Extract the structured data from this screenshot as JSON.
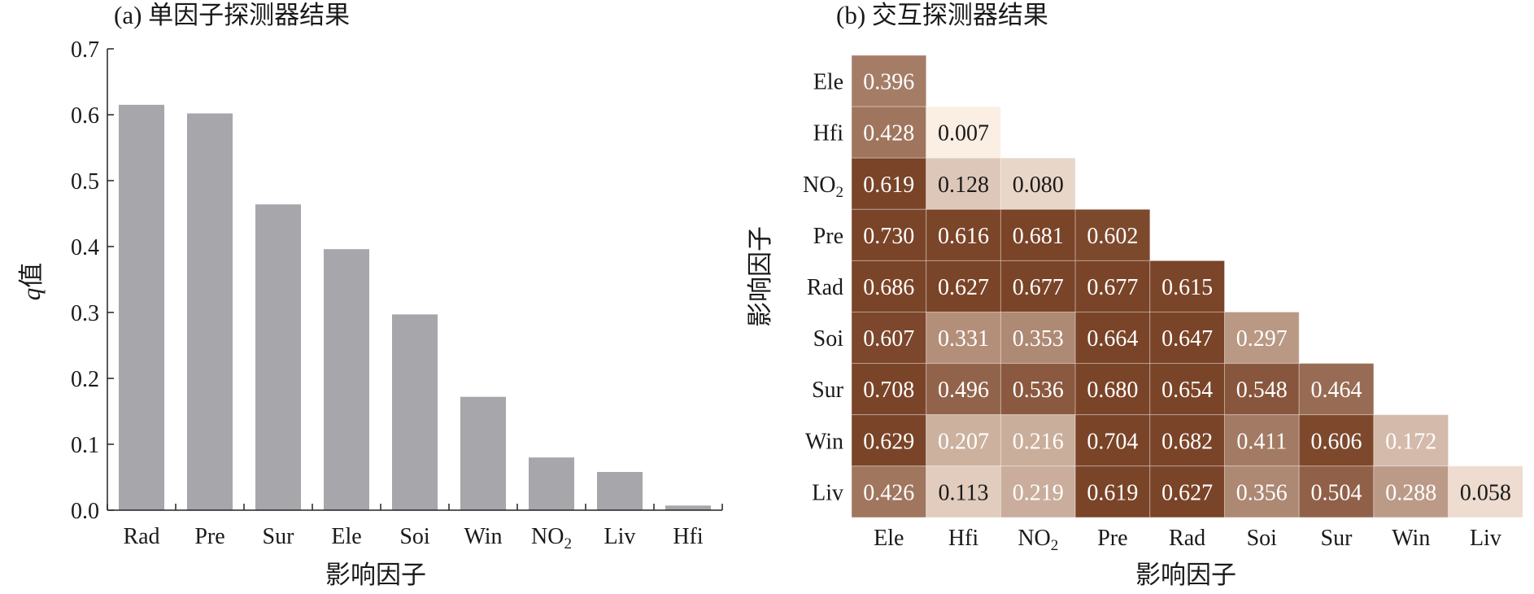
{
  "chart_data": [
    {
      "type": "bar",
      "title": "(a) 单因子探测器结果",
      "xlabel": "影响因子",
      "ylabel_italic": "q",
      "ylabel_rest": "值",
      "categories": [
        "Rad",
        "Pre",
        "Sur",
        "Ele",
        "Soi",
        "Win",
        "NO2",
        "Liv",
        "Hfi"
      ],
      "values": [
        0.615,
        0.602,
        0.464,
        0.396,
        0.297,
        0.172,
        0.08,
        0.058,
        0.007
      ],
      "ylim": [
        0,
        0.7
      ],
      "yticks": [
        "0.0",
        "0.1",
        "0.2",
        "0.3",
        "0.4",
        "0.5",
        "0.6",
        "0.7"
      ],
      "bar_color": "#a6a6ab",
      "grid": false
    },
    {
      "type": "heatmap",
      "title": "(b) 交互探测器结果",
      "xlabel": "影响因子",
      "ylabel": "影响因子",
      "columns": [
        "Ele",
        "Hfi",
        "NO2",
        "Pre",
        "Rad",
        "Soi",
        "Sur",
        "Win",
        "Liv"
      ],
      "rows": [
        "Ele",
        "Hfi",
        "NO2",
        "Pre",
        "Rad",
        "Soi",
        "Sur",
        "Win",
        "Liv"
      ],
      "values": [
        [
          "0.396"
        ],
        [
          "0.428",
          "0.007"
        ],
        [
          "0.619",
          "0.128",
          "0.080"
        ],
        [
          "0.730",
          "0.616",
          "0.681",
          "0.602"
        ],
        [
          "0.686",
          "0.627",
          "0.677",
          "0.677",
          "0.615"
        ],
        [
          "0.607",
          "0.331",
          "0.353",
          "0.664",
          "0.647",
          "0.297"
        ],
        [
          "0.708",
          "0.496",
          "0.536",
          "0.680",
          "0.654",
          "0.548",
          "0.464"
        ],
        [
          "0.629",
          "0.207",
          "0.216",
          "0.704",
          "0.682",
          "0.411",
          "0.606",
          "0.172"
        ],
        [
          "0.426",
          "0.113",
          "0.219",
          "0.619",
          "0.627",
          "0.356",
          "0.504",
          "0.288",
          "0.058"
        ]
      ],
      "color_low": "#fdf1e6",
      "color_high": "#7a4428"
    }
  ]
}
